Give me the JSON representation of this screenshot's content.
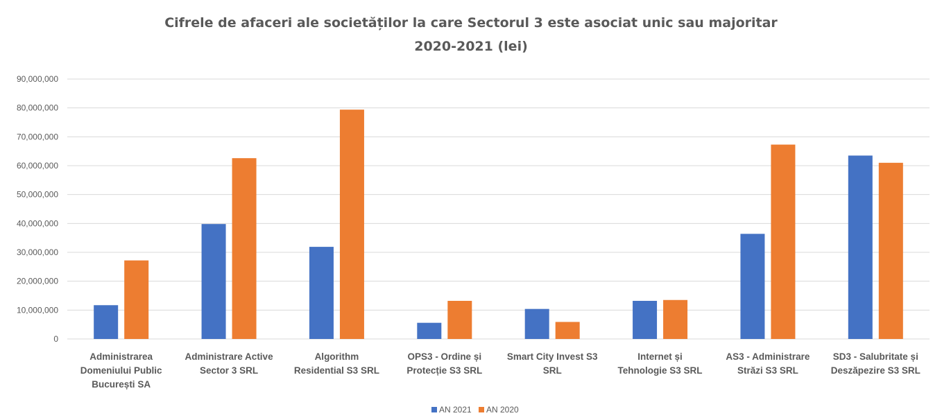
{
  "chart_data": {
    "type": "bar",
    "title": "Cifrele de afaceri ale societăților la care Sectorul 3 este asociat unic sau majoritar",
    "subtitle": "2020-2021 (lei)",
    "categories": [
      [
        "Administrarea",
        "Domeniului Public",
        "București  SA"
      ],
      [
        "Administrare Active",
        "Sector 3 SRL"
      ],
      [
        "Algorithm",
        "Residential S3 SRL"
      ],
      [
        "OPS3 - Ordine și",
        "Protecție S3 SRL"
      ],
      [
        "Smart City Invest S3",
        "SRL"
      ],
      [
        "Internet și",
        "Tehnologie S3 SRL"
      ],
      [
        "AS3 - Administrare",
        "Străzi S3 SRL"
      ],
      [
        "SD3 - Salubritate și",
        "Deszăpezire S3 SRL"
      ]
    ],
    "series": [
      {
        "name": "AN 2021",
        "color": "#4472C4",
        "values": [
          11700000,
          39800000,
          31900000,
          5600000,
          10400000,
          13200000,
          36400000,
          63500000
        ]
      },
      {
        "name": "AN 2020",
        "color": "#ED7D31",
        "values": [
          27200000,
          62600000,
          79400000,
          13200000,
          5900000,
          13500000,
          67300000,
          61000000
        ]
      }
    ],
    "yticks": [
      "0",
      "10,000,000",
      "20,000,000",
      "30,000,000",
      "40,000,000",
      "50,000,000",
      "60,000,000",
      "70,000,000",
      "80,000,000",
      "90,000,000"
    ],
    "ylim": [
      0,
      90000000
    ],
    "grid": true,
    "legend_position": "bottom"
  }
}
